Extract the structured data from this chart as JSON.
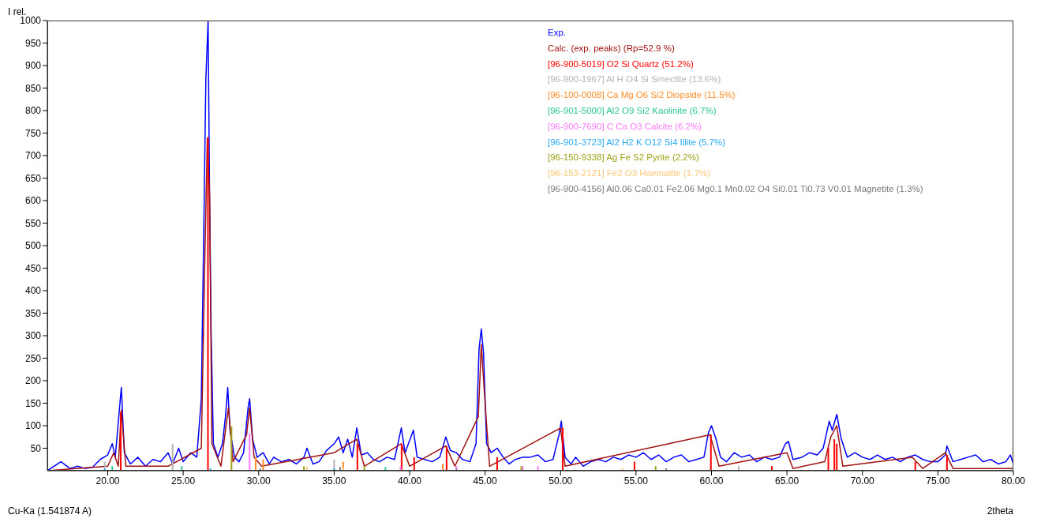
{
  "chart_data": {
    "type": "line",
    "ylabel": "I rel.",
    "xlabel": "2theta",
    "annotations": [
      "Cu-Ka (1.541874 A)"
    ],
    "xlim": [
      16,
      80
    ],
    "ylim": [
      0,
      1000
    ],
    "xticks": [
      {
        "value": 20,
        "label": "20.00"
      },
      {
        "value": 25,
        "label": "25.00"
      },
      {
        "value": 30,
        "label": "30.00"
      },
      {
        "value": 35,
        "label": "35.00"
      },
      {
        "value": 40,
        "label": "40.00"
      },
      {
        "value": 45,
        "label": "45.00"
      },
      {
        "value": 50,
        "label": "50.00"
      },
      {
        "value": 55,
        "label": "55.00"
      },
      {
        "value": 60,
        "label": "60.00"
      },
      {
        "value": 65,
        "label": "65.00"
      },
      {
        "value": 70,
        "label": "70.00"
      },
      {
        "value": 75,
        "label": "75.00"
      },
      {
        "value": 80,
        "label": "80.00"
      }
    ],
    "yticks": [
      50,
      100,
      150,
      200,
      250,
      300,
      350,
      400,
      450,
      500,
      550,
      600,
      650,
      700,
      750,
      800,
      850,
      900,
      950,
      1000
    ],
    "grid": false,
    "legend": "top right",
    "marker": "none",
    "line_style": "solid",
    "series": [
      {
        "name": "Exp.",
        "color": "#0000ff",
        "x": [
          16,
          16.9,
          17.5,
          18,
          18.5,
          19,
          19.5,
          20,
          20.3,
          20.5,
          20.9,
          21.1,
          21.5,
          22,
          22.5,
          23,
          23.5,
          24,
          24.3,
          24.7,
          25,
          25.5,
          25.9,
          26.2,
          26.4,
          26.5,
          26.65,
          26.75,
          26.85,
          27,
          27.3,
          27.6,
          27.8,
          27.95,
          28.1,
          28.4,
          28.7,
          29,
          29.3,
          29.4,
          29.6,
          29.9,
          30.3,
          30.7,
          31,
          31.5,
          32,
          32.5,
          33,
          33.2,
          33.6,
          34,
          34.5,
          35,
          35.3,
          35.6,
          35.9,
          36.2,
          36.5,
          36.8,
          37.2,
          37.6,
          38,
          38.5,
          39,
          39.45,
          39.7,
          40.25,
          40.5,
          41,
          41.5,
          42,
          42.4,
          42.7,
          43.1,
          43.5,
          44,
          44.4,
          44.6,
          44.75,
          44.9,
          45.1,
          45.4,
          45.8,
          46.2,
          46.6,
          47,
          47.5,
          48,
          48.5,
          49,
          49.5,
          49.9,
          50.05,
          50.3,
          50.7,
          51,
          51.5,
          52,
          52.5,
          53,
          53.5,
          54,
          54.5,
          55,
          55.5,
          56,
          56.5,
          57,
          57.5,
          58,
          58.5,
          59,
          59.5,
          59.8,
          60,
          60.3,
          60.6,
          61,
          61.5,
          62,
          62.5,
          63,
          63.5,
          64,
          64.5,
          64.9,
          65.1,
          65.4,
          66,
          66.5,
          67,
          67.4,
          67.8,
          68,
          68.3,
          68.6,
          69,
          69.5,
          70,
          70.5,
          71,
          71.5,
          72,
          72.5,
          73,
          73.5,
          74,
          74.5,
          75,
          75.5,
          75.6,
          76,
          76.5,
          77,
          77.5,
          78,
          78.5,
          79,
          79.5,
          79.8,
          80
        ],
        "values": [
          0,
          20,
          5,
          10,
          5,
          8,
          25,
          35,
          60,
          30,
          185,
          40,
          15,
          30,
          10,
          25,
          20,
          40,
          15,
          50,
          20,
          40,
          30,
          160,
          620,
          870,
          1000,
          600,
          310,
          60,
          30,
          60,
          120,
          185,
          90,
          30,
          20,
          40,
          140,
          160,
          70,
          30,
          40,
          15,
          30,
          20,
          25,
          15,
          30,
          50,
          15,
          20,
          45,
          60,
          75,
          40,
          70,
          30,
          95,
          35,
          40,
          25,
          20,
          30,
          25,
          95,
          40,
          90,
          30,
          25,
          20,
          30,
          75,
          45,
          40,
          25,
          20,
          60,
          270,
          315,
          260,
          60,
          40,
          50,
          30,
          15,
          25,
          30,
          30,
          35,
          20,
          25,
          80,
          110,
          30,
          15,
          30,
          10,
          20,
          25,
          20,
          30,
          25,
          35,
          30,
          40,
          25,
          35,
          20,
          30,
          35,
          20,
          25,
          30,
          85,
          100,
          70,
          30,
          20,
          40,
          30,
          35,
          20,
          30,
          25,
          30,
          60,
          65,
          25,
          30,
          40,
          35,
          50,
          110,
          90,
          125,
          70,
          30,
          40,
          30,
          25,
          35,
          25,
          30,
          20,
          30,
          35,
          25,
          20,
          20,
          35,
          55,
          20,
          25,
          30,
          35,
          20,
          25,
          15,
          20,
          35,
          15
        ]
      },
      {
        "name": "Calc. (exp. peaks) (Rp=52.9 %)",
        "color": "#a01010",
        "x": [
          16,
          20,
          20.4,
          20.7,
          20.9,
          21.2,
          24,
          26.2,
          26.45,
          26.6,
          26.75,
          26.9,
          27.5,
          27.8,
          28,
          28.3,
          29.2,
          29.4,
          29.7,
          30.2,
          35,
          36.5,
          37,
          39.45,
          40,
          42.4,
          43,
          44.55,
          44.75,
          45,
          45.3,
          50,
          50.3,
          59.9,
          60.5,
          65,
          65.4,
          67.5,
          67.9,
          68.3,
          68.7,
          73.3,
          74,
          75.5,
          76,
          80
        ],
        "values": [
          0,
          10,
          40,
          10,
          135,
          10,
          10,
          50,
          500,
          740,
          610,
          60,
          10,
          90,
          140,
          20,
          80,
          140,
          30,
          10,
          40,
          70,
          10,
          60,
          10,
          55,
          10,
          120,
          280,
          150,
          10,
          95,
          10,
          80,
          10,
          40,
          5,
          20,
          75,
          100,
          10,
          30,
          5,
          40,
          5,
          5
        ]
      },
      {
        "name": "[96-900-5019] O2 Si  Quartz (51.2%)",
        "type": "bar",
        "color": "#ff0000",
        "x": [
          20.86,
          26.64,
          36.54,
          39.47,
          40.3,
          42.45,
          45.8,
          50.14,
          54.9,
          59.96,
          64,
          67.74,
          68.14,
          68.3,
          73.5,
          75.6
        ],
        "values": [
          130,
          740,
          60,
          60,
          30,
          55,
          30,
          95,
          20,
          80,
          10,
          50,
          70,
          60,
          20,
          35
        ]
      },
      {
        "name": "[96-900-1967] Al H O4 Si Smectite (13.6%)",
        "type": "bar",
        "color": "#b4b4b4",
        "x": [
          19.8,
          24.3,
          35,
          61.8
        ],
        "values": [
          20,
          60,
          25,
          10
        ]
      },
      {
        "name": "[96-100-0008] Ca Mg O6 Si2  Diopside (11.5%)",
        "type": "bar",
        "color": "#ff8c28",
        "x": [
          29.8,
          30.3,
          35.6,
          42.2
        ],
        "values": [
          30,
          25,
          20,
          15
        ]
      },
      {
        "name": "[96-901-5000] Al2 O9 Si2  Kaolinite (6.7%)",
        "type": "bar",
        "color": "#28c88c",
        "x": [
          20.3,
          24.9,
          38.4
        ],
        "values": [
          10,
          10,
          8
        ]
      },
      {
        "name": "[96-900-7690] C Ca O3  Calcite (6.2%)",
        "type": "bar",
        "color": "#ff78ff",
        "x": [
          29.4,
          39.4,
          43.1,
          47.5,
          48.5
        ],
        "values": [
          83,
          10,
          10,
          10,
          10
        ]
      },
      {
        "name": "[96-901-3723] Al2 H2 K O12 Si4  Illite (5.7%)",
        "type": "bar",
        "color": "#28aaf0",
        "x": [
          19.8,
          26.8,
          35
        ],
        "values": [
          5,
          5,
          5
        ]
      },
      {
        "name": "[96-150-9338] Ag Fe S2 Pyrite (2.2%)",
        "type": "bar",
        "color": "#a0a014",
        "x": [
          28.2,
          33,
          37,
          47.4,
          56.3
        ],
        "values": [
          98,
          10,
          10,
          10,
          10
        ]
      },
      {
        "name": "[96-153-2121] Fe2 O3 Haematite (1.7%)",
        "type": "bar",
        "color": "#ffc878",
        "x": [
          33.2,
          35.6,
          54.1
        ],
        "values": [
          8,
          6,
          5
        ]
      },
      {
        "name": "[96-900-4156] Al0.06 Ca0.01 Fe2.06 Mg0.1 Mn0.02 O4 Si0.01 Ti0.73 V0.01  Magnetite (1.3%)",
        "type": "bar",
        "color": "#787878",
        "x": [
          30.1,
          35.4,
          43.1,
          57
        ],
        "values": [
          5,
          8,
          5,
          5
        ]
      }
    ]
  }
}
